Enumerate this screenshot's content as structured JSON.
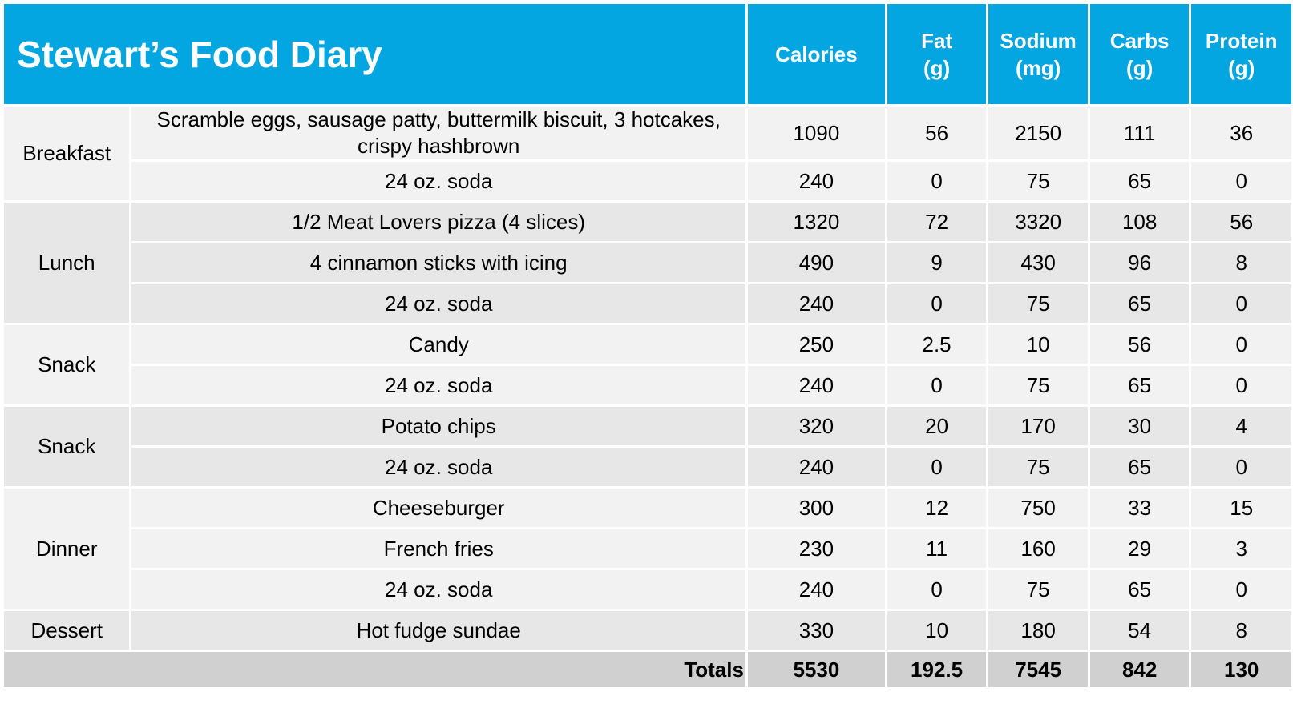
{
  "header": {
    "title": "Stewart’s Food Diary",
    "columns": [
      {
        "line1": "Calories",
        "line2": ""
      },
      {
        "line1": "Fat",
        "line2": "(g)"
      },
      {
        "line1": "Sodium",
        "line2": "(mg)"
      },
      {
        "line1": "Carbs",
        "line2": "(g)"
      },
      {
        "line1": "Protein",
        "line2": "(g)"
      }
    ]
  },
  "meals": [
    {
      "label": "Breakfast",
      "rows": [
        {
          "item": "Scramble eggs, sausage patty, buttermilk biscuit, 3 hotcakes, crispy hashbrown",
          "calories": "1090",
          "fat": "56",
          "sodium": "2150",
          "carbs": "111",
          "protein": "36"
        },
        {
          "item": "24 oz. soda",
          "calories": "240",
          "fat": "0",
          "sodium": "75",
          "carbs": "65",
          "protein": "0"
        }
      ]
    },
    {
      "label": "Lunch",
      "rows": [
        {
          "item": "1/2 Meat Lovers pizza (4 slices)",
          "calories": "1320",
          "fat": "72",
          "sodium": "3320",
          "carbs": "108",
          "protein": "56"
        },
        {
          "item": "4 cinnamon sticks with icing",
          "calories": "490",
          "fat": "9",
          "sodium": "430",
          "carbs": "96",
          "protein": "8"
        },
        {
          "item": "24 oz. soda",
          "calories": "240",
          "fat": "0",
          "sodium": "75",
          "carbs": "65",
          "protein": "0"
        }
      ]
    },
    {
      "label": "Snack",
      "rows": [
        {
          "item": "Candy",
          "calories": "250",
          "fat": "2.5",
          "sodium": "10",
          "carbs": "56",
          "protein": "0"
        },
        {
          "item": "24 oz. soda",
          "calories": "240",
          "fat": "0",
          "sodium": "75",
          "carbs": "65",
          "protein": "0"
        }
      ]
    },
    {
      "label": "Snack",
      "rows": [
        {
          "item": "Potato chips",
          "calories": "320",
          "fat": "20",
          "sodium": "170",
          "carbs": "30",
          "protein": "4"
        },
        {
          "item": "24 oz. soda",
          "calories": "240",
          "fat": "0",
          "sodium": "75",
          "carbs": "65",
          "protein": "0"
        }
      ]
    },
    {
      "label": "Dinner",
      "rows": [
        {
          "item": "Cheeseburger",
          "calories": "300",
          "fat": "12",
          "sodium": "750",
          "carbs": "33",
          "protein": "15"
        },
        {
          "item": "French fries",
          "calories": "230",
          "fat": "11",
          "sodium": "160",
          "carbs": "29",
          "protein": "3"
        },
        {
          "item": "24 oz. soda",
          "calories": "240",
          "fat": "0",
          "sodium": "75",
          "carbs": "65",
          "protein": "0"
        }
      ]
    },
    {
      "label": "Dessert",
      "rows": [
        {
          "item": "Hot fudge sundae",
          "calories": "330",
          "fat": "10",
          "sodium": "180",
          "carbs": "54",
          "protein": "8"
        }
      ]
    }
  ],
  "totals": {
    "label": "Totals",
    "calories": "5530",
    "fat": "192.5",
    "sodium": "7545",
    "carbs": "842",
    "protein": "130"
  },
  "colors": {
    "header_bg": "#03A6E0",
    "row_light": "#F2F2F2",
    "row_dark": "#E7E7E7",
    "totals_bg": "#D0D0D0"
  }
}
